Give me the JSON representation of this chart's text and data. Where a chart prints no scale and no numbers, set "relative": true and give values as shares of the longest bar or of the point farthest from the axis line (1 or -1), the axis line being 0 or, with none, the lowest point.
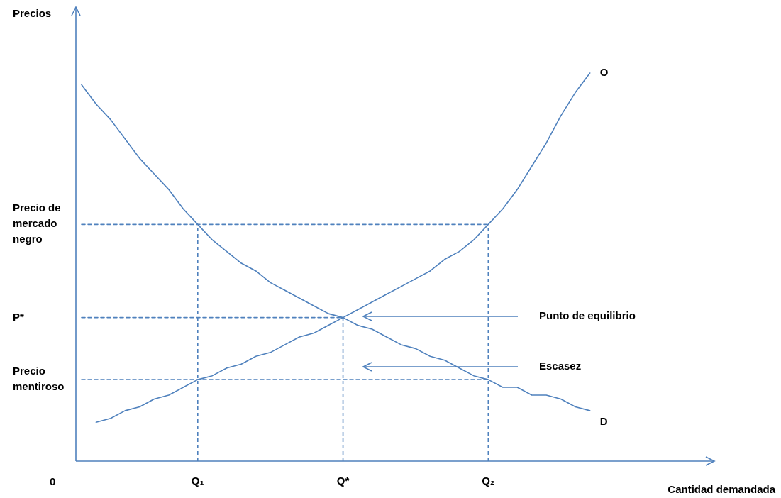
{
  "chart_data": {
    "type": "line",
    "relative": true,
    "categories": [
      null,
      null,
      null,
      null,
      null,
      null,
      null,
      null,
      "Q₁",
      null,
      null,
      null,
      null,
      null,
      null,
      null,
      null,
      null,
      "Q*",
      null,
      null,
      null,
      null,
      null,
      null,
      null,
      null,
      null,
      "Q₂",
      null,
      null,
      null,
      null,
      null,
      null,
      null
    ],
    "marker": "none",
    "line_style": "solid",
    "series": [
      {
        "name": "D",
        "color": "#4f81bd",
        "values": [
          0.97,
          0.92,
          0.88,
          0.83,
          0.78,
          0.74,
          0.7,
          0.65,
          0.61,
          0.57,
          0.54,
          0.51,
          0.49,
          0.46,
          0.44,
          0.42,
          0.4,
          0.38,
          0.37,
          0.35,
          0.34,
          0.32,
          0.3,
          0.29,
          0.27,
          0.26,
          0.24,
          0.22,
          0.21,
          0.19,
          0.19,
          0.17,
          0.17,
          0.16,
          0.14,
          0.13
        ]
      },
      {
        "name": "O",
        "color": "#4f81bd",
        "values": [
          null,
          0.1,
          0.11,
          0.13,
          0.14,
          0.16,
          0.17,
          0.19,
          0.21,
          0.22,
          0.24,
          0.25,
          0.27,
          0.28,
          0.3,
          0.32,
          0.33,
          0.35,
          0.37,
          0.39,
          0.41,
          0.43,
          0.45,
          0.47,
          0.49,
          0.52,
          0.54,
          0.57,
          0.61,
          0.65,
          0.7,
          0.76,
          0.82,
          0.89,
          0.95,
          1
        ]
      },
      {
        "color": "#4f81bd",
        "line_style": "dashed",
        "values": [
          0.61,
          0.61,
          0.61,
          0.61,
          0.61,
          0.61,
          0.61,
          0.61,
          0.61,
          0.61,
          0.61,
          0.61,
          0.61,
          0.61,
          0.61,
          0.61,
          0.61,
          0.61,
          0.61,
          0.61,
          0.61,
          0.61,
          0.61,
          0.61,
          0.61,
          0.61,
          0.61,
          0.61,
          0.61,
          null,
          null,
          null,
          null,
          null,
          null,
          null
        ]
      },
      {
        "color": "#4f81bd",
        "line_style": "dashed",
        "values": [
          0.37,
          0.37,
          0.37,
          0.37,
          0.37,
          0.37,
          0.37,
          0.37,
          0.37,
          0.37,
          0.37,
          0.37,
          0.37,
          0.37,
          0.37,
          0.37,
          0.37,
          0.37,
          0.37,
          null,
          null,
          null,
          null,
          null,
          null,
          null,
          null,
          null,
          null,
          null,
          null,
          null,
          null,
          null,
          null,
          null
        ]
      },
      {
        "color": "#4f81bd",
        "line_style": "dashed",
        "values": [
          0.21,
          0.21,
          0.21,
          0.21,
          0.21,
          0.21,
          0.21,
          0.21,
          0.21,
          0.21,
          0.21,
          0.21,
          0.21,
          0.21,
          0.21,
          0.21,
          0.21,
          0.21,
          0.21,
          0.21,
          0.21,
          0.21,
          0.21,
          0.21,
          0.21,
          0.21,
          0.21,
          0.21,
          0.21,
          null,
          null,
          null,
          null,
          null,
          null,
          null
        ]
      }
    ],
    "ref_lines": [
      {
        "axis": "x",
        "value": "Q₁",
        "color": "#4f81bd",
        "line_style": "dashed"
      },
      {
        "axis": "x",
        "value": "Q*",
        "color": "#4f81bd",
        "line_style": "dashed"
      },
      {
        "axis": "x",
        "value": "Q₂",
        "color": "#4f81bd",
        "line_style": "dashed"
      }
    ],
    "annotations": [
      "Precio de mercado negro",
      "P*",
      "Precio mentiroso",
      "0",
      "Punto de equilibrio",
      "Escasez",
      "Precios",
      "Cantidad demandada"
    ]
  }
}
